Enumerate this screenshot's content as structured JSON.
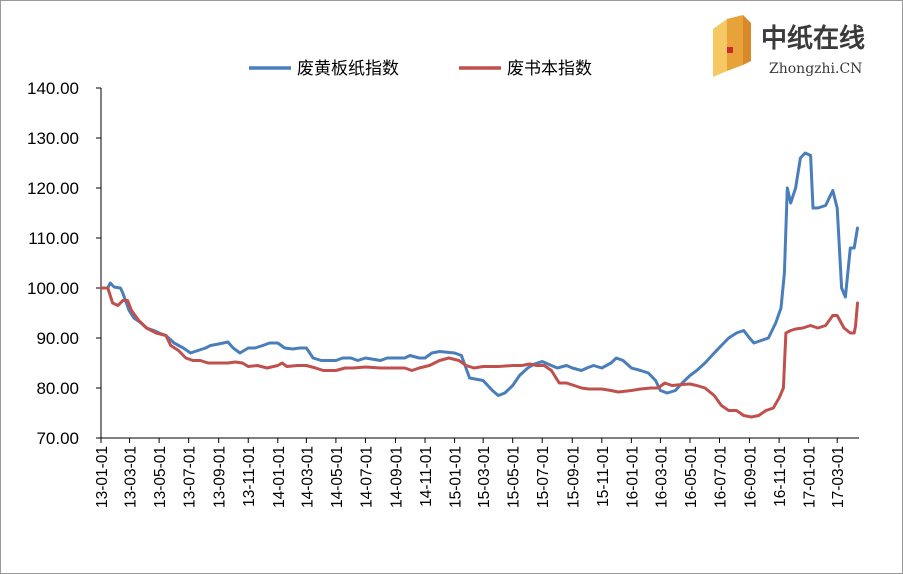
{
  "logo": {
    "name_cn": "中纸在线",
    "name_en": "Zhongzhi.CN",
    "colors": {
      "primary": "#e8a23a",
      "secondary": "#f5c864",
      "accent": "#cc2a2a"
    }
  },
  "chart_data": {
    "type": "line",
    "title": "",
    "xlabel": "",
    "ylabel": "",
    "ylim": [
      70,
      140
    ],
    "y_ticks": [
      "140.00",
      "130.00",
      "120.00",
      "110.00",
      "100.00",
      "90.00",
      "80.00",
      "70.00"
    ],
    "x_ticks": [
      "13-01-01",
      "13-03-01",
      "13-05-01",
      "13-07-01",
      "13-09-01",
      "13-11-01",
      "14-01-01",
      "14-03-01",
      "14-05-01",
      "14-07-01",
      "14-09-01",
      "14-11-01",
      "15-01-01",
      "15-03-01",
      "15-05-01",
      "15-07-01",
      "15-09-01",
      "15-11-01",
      "16-01-01",
      "16-03-01",
      "16-05-01",
      "16-07-01",
      "16-09-01",
      "16-11-01",
      "17-01-01",
      "17-03-01"
    ],
    "grid": false,
    "legend_position": "top",
    "series": [
      {
        "name": "废黄板纸指数",
        "color": "#4a7ebb",
        "points": [
          [
            "2013-01-01",
            100.0
          ],
          [
            "2013-01-15",
            100.0
          ],
          [
            "2013-01-20",
            101.0
          ],
          [
            "2013-01-28",
            100.2
          ],
          [
            "2013-02-10",
            100.0
          ],
          [
            "2013-02-15",
            99.0
          ],
          [
            "2013-02-28",
            95.5
          ],
          [
            "2013-03-10",
            94.0
          ],
          [
            "2013-03-25",
            93.0
          ],
          [
            "2013-04-05",
            92.0
          ],
          [
            "2013-04-20",
            91.5
          ],
          [
            "2013-05-01",
            91.0
          ],
          [
            "2013-05-15",
            90.5
          ],
          [
            "2013-06-01",
            89.0
          ],
          [
            "2013-06-20",
            88.0
          ],
          [
            "2013-07-05",
            87.0
          ],
          [
            "2013-07-20",
            87.5
          ],
          [
            "2013-08-05",
            88.0
          ],
          [
            "2013-08-15",
            88.5
          ],
          [
            "2013-09-01",
            88.8
          ],
          [
            "2013-09-20",
            89.2
          ],
          [
            "2013-10-01",
            88.0
          ],
          [
            "2013-10-15",
            87.0
          ],
          [
            "2013-11-01",
            88.0
          ],
          [
            "2013-11-15",
            88.0
          ],
          [
            "2013-12-01",
            88.5
          ],
          [
            "2013-12-15",
            89.0
          ],
          [
            "2014-01-01",
            89.0
          ],
          [
            "2014-01-15",
            88.0
          ],
          [
            "2014-02-01",
            87.8
          ],
          [
            "2014-02-15",
            88.0
          ],
          [
            "2014-03-01",
            88.0
          ],
          [
            "2014-03-15",
            86.0
          ],
          [
            "2014-04-01",
            85.5
          ],
          [
            "2014-05-01",
            85.5
          ],
          [
            "2014-05-15",
            86.0
          ],
          [
            "2014-06-01",
            86.0
          ],
          [
            "2014-06-15",
            85.5
          ],
          [
            "2014-07-01",
            86.0
          ],
          [
            "2014-08-01",
            85.5
          ],
          [
            "2014-08-15",
            86.0
          ],
          [
            "2014-09-01",
            86.0
          ],
          [
            "2014-09-20",
            86.0
          ],
          [
            "2014-10-01",
            86.5
          ],
          [
            "2014-10-20",
            86.0
          ],
          [
            "2014-11-01",
            86.0
          ],
          [
            "2014-11-15",
            87.0
          ],
          [
            "2014-12-01",
            87.3
          ],
          [
            "2015-01-01",
            87.0
          ],
          [
            "2015-01-15",
            86.5
          ],
          [
            "2015-02-01",
            82.0
          ],
          [
            "2015-03-01",
            81.5
          ],
          [
            "2015-03-20",
            79.5
          ],
          [
            "2015-04-01",
            78.5
          ],
          [
            "2015-04-15",
            79.0
          ],
          [
            "2015-05-01",
            80.5
          ],
          [
            "2015-05-15",
            82.5
          ],
          [
            "2015-06-01",
            84.0
          ],
          [
            "2015-06-15",
            84.8
          ],
          [
            "2015-07-01",
            85.3
          ],
          [
            "2015-07-20",
            84.5
          ],
          [
            "2015-08-01",
            84.0
          ],
          [
            "2015-08-20",
            84.5
          ],
          [
            "2015-09-01",
            84.0
          ],
          [
            "2015-09-20",
            83.5
          ],
          [
            "2015-10-01",
            84.0
          ],
          [
            "2015-10-15",
            84.5
          ],
          [
            "2015-11-01",
            84.0
          ],
          [
            "2015-11-20",
            85.0
          ],
          [
            "2015-12-01",
            86.0
          ],
          [
            "2015-12-15",
            85.5
          ],
          [
            "2016-01-01",
            84.0
          ],
          [
            "2016-01-20",
            83.5
          ],
          [
            "2016-02-05",
            83.0
          ],
          [
            "2016-02-20",
            81.5
          ],
          [
            "2016-03-01",
            79.5
          ],
          [
            "2016-03-15",
            79.0
          ],
          [
            "2016-04-01",
            79.5
          ],
          [
            "2016-04-15",
            81.0
          ],
          [
            "2016-05-01",
            82.5
          ],
          [
            "2016-05-15",
            83.5
          ],
          [
            "2016-06-01",
            85.0
          ],
          [
            "2016-06-20",
            87.0
          ],
          [
            "2016-07-05",
            88.5
          ],
          [
            "2016-07-20",
            90.0
          ],
          [
            "2016-08-05",
            91.0
          ],
          [
            "2016-08-20",
            91.5
          ],
          [
            "2016-09-01",
            90.0
          ],
          [
            "2016-09-10",
            89.0
          ],
          [
            "2016-09-25",
            89.5
          ],
          [
            "2016-10-10",
            90.0
          ],
          [
            "2016-10-25",
            93.0
          ],
          [
            "2016-11-05",
            96.0
          ],
          [
            "2016-11-12",
            103.0
          ],
          [
            "2016-11-18",
            120.0
          ],
          [
            "2016-11-25",
            117.0
          ],
          [
            "2016-12-05",
            120.0
          ],
          [
            "2016-12-15",
            126.0
          ],
          [
            "2016-12-25",
            127.0
          ],
          [
            "2017-01-05",
            126.5
          ],
          [
            "2017-01-10",
            116.0
          ],
          [
            "2017-01-20",
            116.0
          ],
          [
            "2017-02-05",
            116.5
          ],
          [
            "2017-02-20",
            119.5
          ],
          [
            "2017-03-01",
            116.0
          ],
          [
            "2017-03-10",
            100.0
          ],
          [
            "2017-03-18",
            98.2
          ],
          [
            "2017-03-28",
            108.0
          ],
          [
            "2017-04-05",
            108.0
          ],
          [
            "2017-04-12",
            112.0
          ]
        ]
      },
      {
        "name": "废书本指数",
        "color": "#c0504d",
        "points": [
          [
            "2013-01-01",
            100.0
          ],
          [
            "2013-01-15",
            100.0
          ],
          [
            "2013-01-25",
            97.0
          ],
          [
            "2013-02-05",
            96.5
          ],
          [
            "2013-02-15",
            97.5
          ],
          [
            "2013-02-25",
            97.5
          ],
          [
            "2013-03-05",
            95.5
          ],
          [
            "2013-03-20",
            93.5
          ],
          [
            "2013-04-05",
            92.0
          ],
          [
            "2013-04-25",
            91.0
          ],
          [
            "2013-05-15",
            90.5
          ],
          [
            "2013-05-25",
            88.5
          ],
          [
            "2013-06-10",
            87.5
          ],
          [
            "2013-06-25",
            86.0
          ],
          [
            "2013-07-10",
            85.5
          ],
          [
            "2013-07-25",
            85.5
          ],
          [
            "2013-08-10",
            85.0
          ],
          [
            "2013-09-01",
            85.0
          ],
          [
            "2013-09-20",
            85.0
          ],
          [
            "2013-10-05",
            85.2
          ],
          [
            "2013-10-20",
            85.0
          ],
          [
            "2013-11-01",
            84.3
          ],
          [
            "2013-11-20",
            84.5
          ],
          [
            "2013-12-10",
            84.0
          ],
          [
            "2014-01-01",
            84.5
          ],
          [
            "2014-01-10",
            85.0
          ],
          [
            "2014-01-20",
            84.3
          ],
          [
            "2014-02-10",
            84.5
          ],
          [
            "2014-03-01",
            84.5
          ],
          [
            "2014-03-20",
            84.0
          ],
          [
            "2014-04-05",
            83.5
          ],
          [
            "2014-05-01",
            83.5
          ],
          [
            "2014-05-20",
            84.0
          ],
          [
            "2014-06-05",
            84.0
          ],
          [
            "2014-07-01",
            84.2
          ],
          [
            "2014-08-01",
            84.0
          ],
          [
            "2014-09-01",
            84.0
          ],
          [
            "2014-09-20",
            84.0
          ],
          [
            "2014-10-05",
            83.5
          ],
          [
            "2014-10-20",
            84.0
          ],
          [
            "2014-11-10",
            84.5
          ],
          [
            "2014-12-01",
            85.5
          ],
          [
            "2014-12-20",
            86.0
          ],
          [
            "2015-01-10",
            85.5
          ],
          [
            "2015-01-25",
            84.5
          ],
          [
            "2015-02-10",
            84.0
          ],
          [
            "2015-03-01",
            84.3
          ],
          [
            "2015-04-01",
            84.3
          ],
          [
            "2015-05-01",
            84.5
          ],
          [
            "2015-05-20",
            84.5
          ],
          [
            "2015-06-05",
            84.8
          ],
          [
            "2015-06-20",
            84.5
          ],
          [
            "2015-07-05",
            84.5
          ],
          [
            "2015-07-20",
            83.5
          ],
          [
            "2015-08-05",
            81.0
          ],
          [
            "2015-08-20",
            81.0
          ],
          [
            "2015-09-05",
            80.5
          ],
          [
            "2015-09-20",
            80.0
          ],
          [
            "2015-10-05",
            79.8
          ],
          [
            "2015-11-01",
            79.8
          ],
          [
            "2015-11-20",
            79.5
          ],
          [
            "2015-12-05",
            79.2
          ],
          [
            "2016-01-01",
            79.5
          ],
          [
            "2016-01-20",
            79.8
          ],
          [
            "2016-02-10",
            80.0
          ],
          [
            "2016-02-25",
            80.0
          ],
          [
            "2016-03-10",
            81.0
          ],
          [
            "2016-03-25",
            80.5
          ],
          [
            "2016-04-15",
            80.7
          ],
          [
            "2016-05-01",
            80.8
          ],
          [
            "2016-05-15",
            80.5
          ],
          [
            "2016-06-01",
            80.0
          ],
          [
            "2016-06-20",
            78.5
          ],
          [
            "2016-07-05",
            76.5
          ],
          [
            "2016-07-20",
            75.5
          ],
          [
            "2016-08-05",
            75.5
          ],
          [
            "2016-08-20",
            74.5
          ],
          [
            "2016-09-05",
            74.2
          ],
          [
            "2016-09-20",
            74.5
          ],
          [
            "2016-10-05",
            75.5
          ],
          [
            "2016-10-20",
            76.0
          ],
          [
            "2016-11-01",
            78.0
          ],
          [
            "2016-11-10",
            80.0
          ],
          [
            "2016-11-15",
            91.0
          ],
          [
            "2016-11-25",
            91.5
          ],
          [
            "2016-12-05",
            91.8
          ],
          [
            "2016-12-20",
            92.0
          ],
          [
            "2017-01-05",
            92.5
          ],
          [
            "2017-01-20",
            92.0
          ],
          [
            "2017-02-05",
            92.5
          ],
          [
            "2017-02-20",
            94.5
          ],
          [
            "2017-03-01",
            94.5
          ],
          [
            "2017-03-15",
            92.0
          ],
          [
            "2017-03-28",
            91.0
          ],
          [
            "2017-04-05",
            91.0
          ],
          [
            "2017-04-08",
            92.5
          ],
          [
            "2017-04-12",
            97.0
          ]
        ]
      }
    ]
  }
}
